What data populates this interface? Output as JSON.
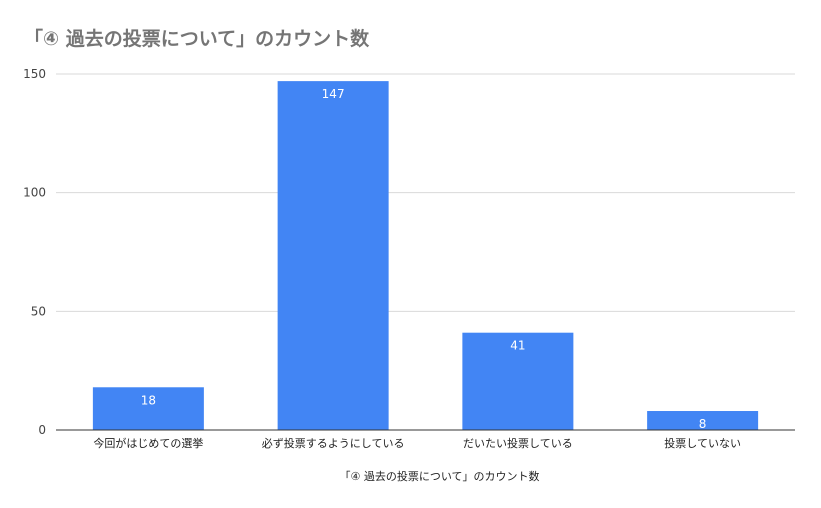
{
  "chart_data": {
    "type": "bar",
    "title": "「④ 過去の投票について」のカウント数",
    "xlabel": "「④ 過去の投票について」のカウント数",
    "ylabel": "",
    "categories": [
      "今回がはじめての選挙",
      "必ず投票するようにしている",
      "だいたい投票している",
      "投票していない"
    ],
    "values": [
      18,
      147,
      41,
      8
    ],
    "ylim": [
      0,
      150
    ],
    "yticks": [
      0,
      50,
      100,
      150
    ],
    "grid": true,
    "data_labels": true,
    "colors": {
      "bar": "#4285f4",
      "grid": "#d9d9d9",
      "axis": "#333333"
    }
  }
}
